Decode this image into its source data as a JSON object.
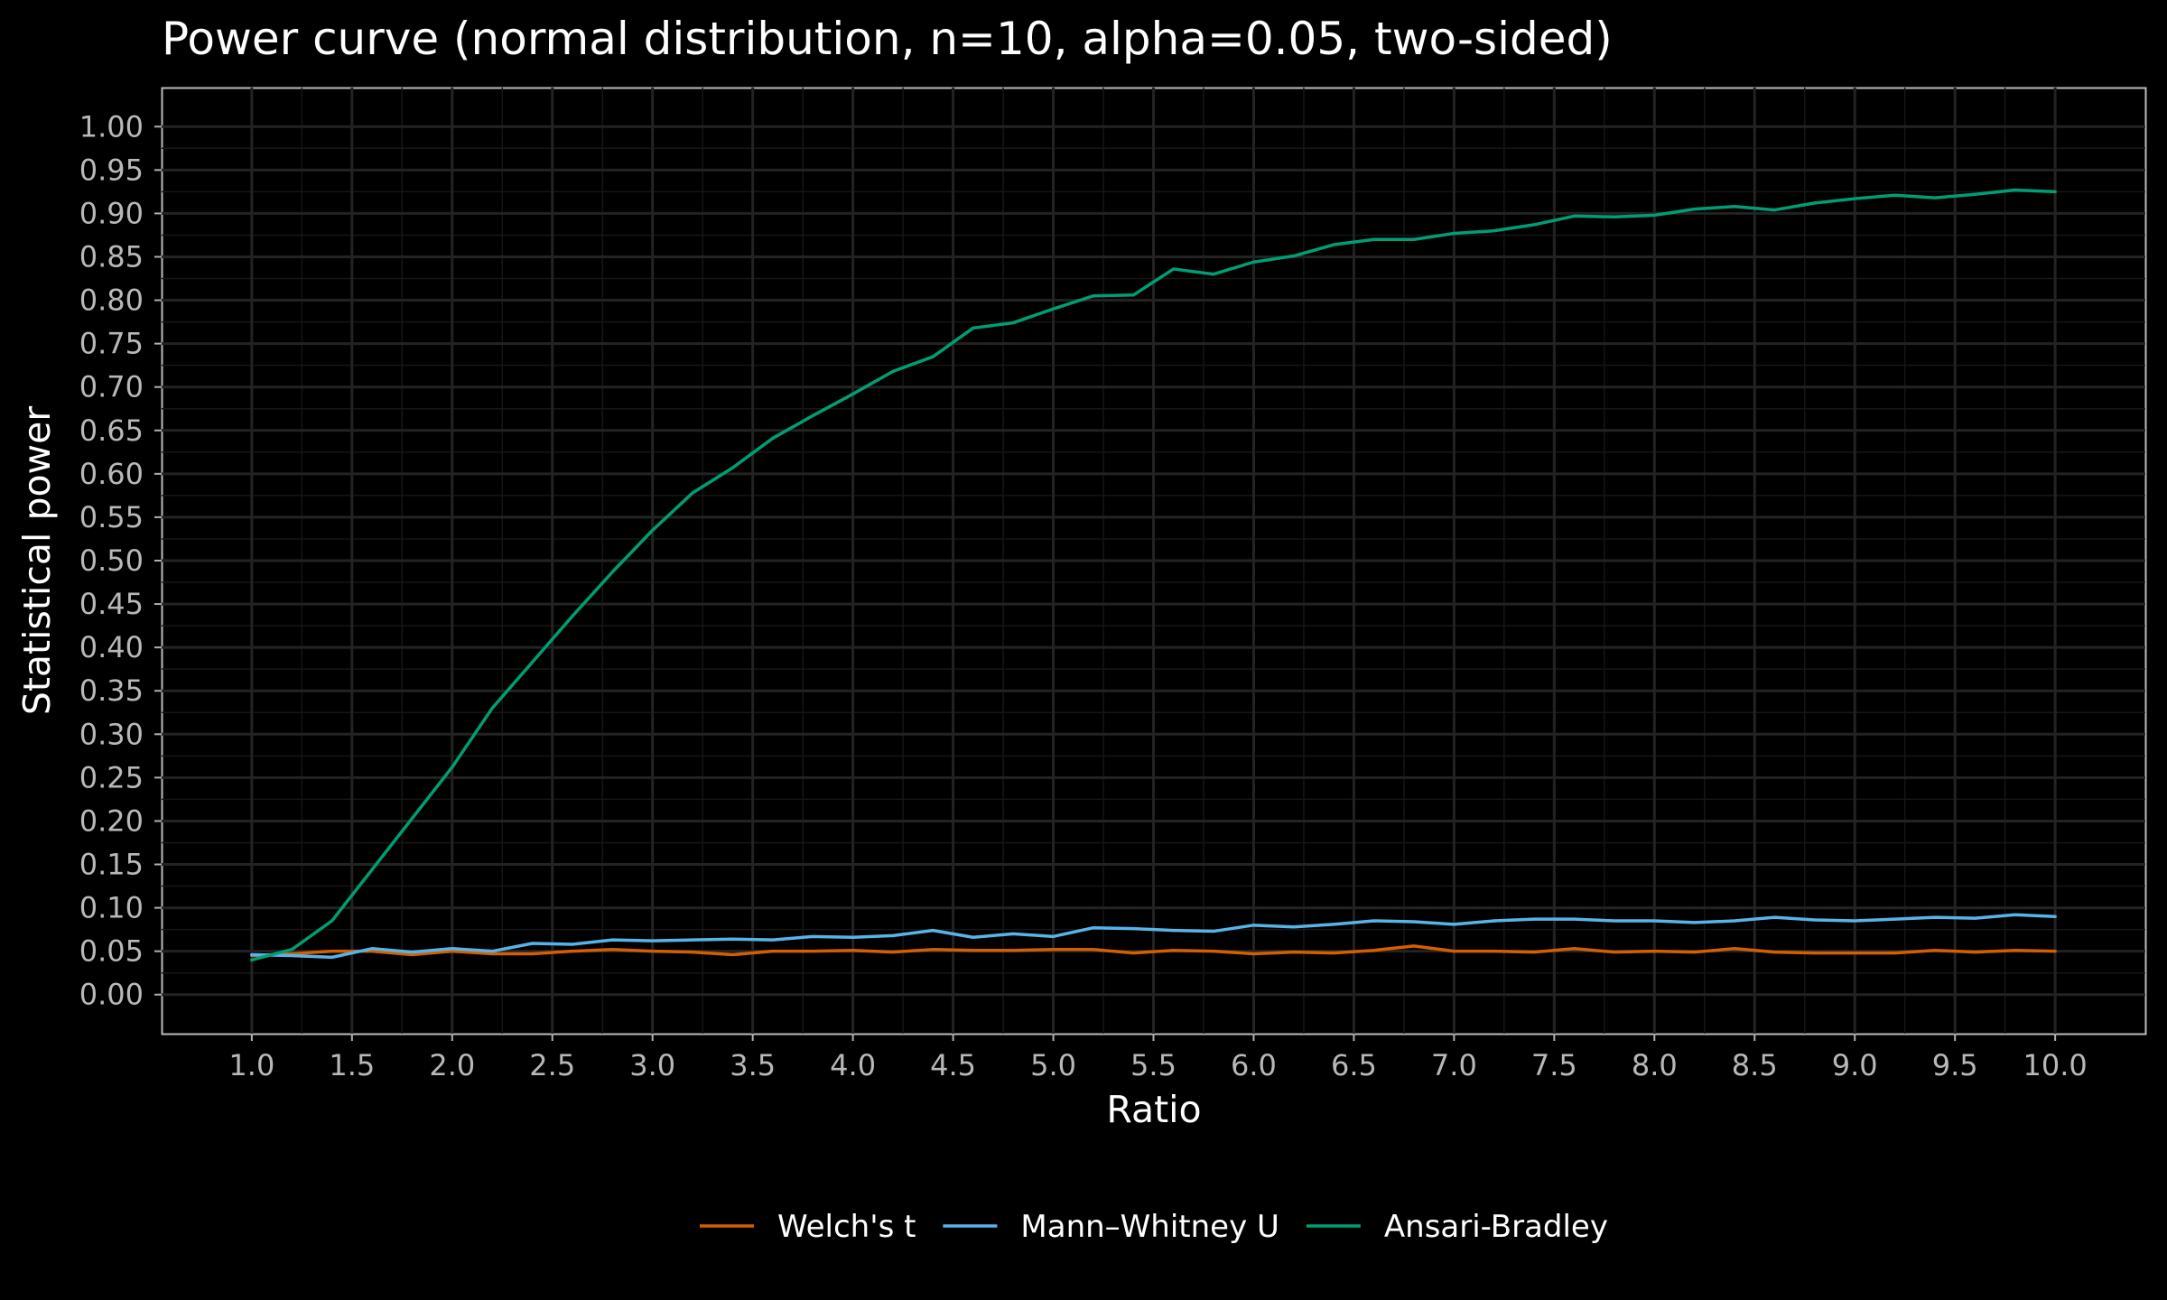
{
  "chart_data": {
    "type": "line",
    "title": "Power curve (normal distribution, n=10, alpha=0.05, two-sided)",
    "xlabel": "Ratio",
    "ylabel": "Statistical power",
    "xlim": [
      0.55,
      10.45
    ],
    "ylim": [
      -0.045,
      1.045
    ],
    "x_ticks": [
      1.0,
      1.5,
      2.0,
      2.5,
      3.0,
      3.5,
      4.0,
      4.5,
      5.0,
      5.5,
      6.0,
      6.5,
      7.0,
      7.5,
      8.0,
      8.5,
      9.0,
      9.5,
      10.0
    ],
    "x_tick_labels": [
      "1.0",
      "1.5",
      "2.0",
      "2.5",
      "3.0",
      "3.5",
      "4.0",
      "4.5",
      "5.0",
      "5.5",
      "6.0",
      "6.5",
      "7.0",
      "7.5",
      "8.0",
      "8.5",
      "9.0",
      "9.5",
      "10.0"
    ],
    "y_ticks": [
      0.0,
      0.05,
      0.1,
      0.15,
      0.2,
      0.25,
      0.3,
      0.35,
      0.4,
      0.45,
      0.5,
      0.55,
      0.6,
      0.65,
      0.7,
      0.75,
      0.8,
      0.85,
      0.9,
      0.95,
      1.0
    ],
    "y_tick_labels": [
      "0.00",
      "0.05",
      "0.10",
      "0.15",
      "0.20",
      "0.25",
      "0.30",
      "0.35",
      "0.40",
      "0.45",
      "0.50",
      "0.55",
      "0.60",
      "0.65",
      "0.70",
      "0.75",
      "0.80",
      "0.85",
      "0.90",
      "0.95",
      "1.00"
    ],
    "grid": true,
    "legend_position": "bottom",
    "x": [
      1.0,
      1.2,
      1.4,
      1.6,
      1.8,
      2.0,
      2.2,
      2.4,
      2.6,
      2.8,
      3.0,
      3.2,
      3.4,
      3.6,
      3.8,
      4.0,
      4.2,
      4.4,
      4.6,
      4.8,
      5.0,
      5.2,
      5.4,
      5.6,
      5.8,
      6.0,
      6.2,
      6.4,
      6.6,
      6.8,
      7.0,
      7.2,
      7.4,
      7.6,
      7.8,
      8.0,
      8.2,
      8.4,
      8.6,
      8.8,
      9.0,
      9.2,
      9.4,
      9.6,
      9.8,
      10.0
    ],
    "series": [
      {
        "name": "Welch's t",
        "color": "#d55e00",
        "values": [
          0.045,
          0.047,
          0.05,
          0.05,
          0.046,
          0.05,
          0.047,
          0.047,
          0.05,
          0.052,
          0.05,
          0.049,
          0.046,
          0.05,
          0.05,
          0.051,
          0.049,
          0.052,
          0.051,
          0.051,
          0.052,
          0.052,
          0.048,
          0.051,
          0.05,
          0.047,
          0.049,
          0.048,
          0.051,
          0.056,
          0.05,
          0.05,
          0.049,
          0.053,
          0.049,
          0.05,
          0.049,
          0.053,
          0.049,
          0.048,
          0.048,
          0.048,
          0.051,
          0.049,
          0.051,
          0.05
        ]
      },
      {
        "name": "Mann–Whitney U",
        "color": "#56b4e9",
        "values": [
          0.046,
          0.045,
          0.043,
          0.053,
          0.049,
          0.053,
          0.05,
          0.059,
          0.058,
          0.063,
          0.062,
          0.063,
          0.064,
          0.063,
          0.067,
          0.066,
          0.068,
          0.074,
          0.066,
          0.07,
          0.067,
          0.077,
          0.076,
          0.074,
          0.073,
          0.08,
          0.078,
          0.081,
          0.085,
          0.084,
          0.081,
          0.085,
          0.087,
          0.087,
          0.085,
          0.085,
          0.083,
          0.085,
          0.089,
          0.086,
          0.085,
          0.087,
          0.089,
          0.088,
          0.092,
          0.09
        ]
      },
      {
        "name": "Ansari-Bradley",
        "color": "#009e73",
        "values": [
          0.04,
          0.052,
          0.085,
          0.144,
          0.203,
          0.262,
          0.33,
          0.383,
          0.436,
          0.487,
          0.535,
          0.578,
          0.607,
          0.641,
          0.667,
          0.692,
          0.718,
          0.735,
          0.768,
          0.774,
          0.79,
          0.805,
          0.806,
          0.836,
          0.83,
          0.844,
          0.851,
          0.864,
          0.87,
          0.87,
          0.877,
          0.88,
          0.887,
          0.897,
          0.896,
          0.898,
          0.905,
          0.908,
          0.904,
          0.912,
          0.917,
          0.921,
          0.918,
          0.922,
          0.927,
          0.925
        ]
      }
    ]
  }
}
